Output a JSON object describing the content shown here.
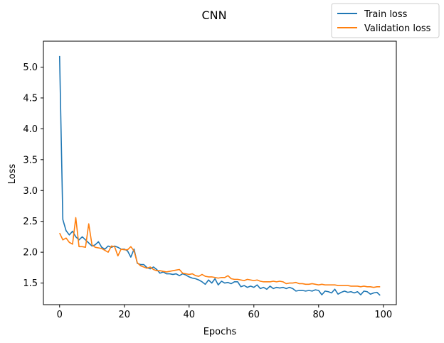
{
  "chart_data": {
    "type": "line",
    "title": "CNN",
    "xlabel": "Epochs",
    "ylabel": "Loss",
    "xlim": [
      -5,
      104
    ],
    "ylim": [
      1.15,
      5.42
    ],
    "xticks": [
      0,
      20,
      40,
      60,
      80,
      100
    ],
    "yticks": [
      1.5,
      2.0,
      2.5,
      3.0,
      3.5,
      4.0,
      4.5,
      5.0
    ],
    "xtick_labels": [
      "0",
      "20",
      "40",
      "60",
      "80",
      "100"
    ],
    "ytick_labels": [
      "1.5",
      "2.0",
      "2.5",
      "3.0",
      "3.5",
      "4.0",
      "4.5",
      "5.0"
    ],
    "grid": false,
    "legend_position": "upper-right",
    "x": [
      0,
      1,
      2,
      3,
      4,
      5,
      6,
      7,
      8,
      9,
      10,
      11,
      12,
      13,
      14,
      15,
      16,
      17,
      18,
      19,
      20,
      21,
      22,
      23,
      24,
      25,
      26,
      27,
      28,
      29,
      30,
      31,
      32,
      33,
      34,
      35,
      36,
      37,
      38,
      39,
      40,
      41,
      42,
      43,
      44,
      45,
      46,
      47,
      48,
      49,
      50,
      51,
      52,
      53,
      54,
      55,
      56,
      57,
      58,
      59,
      60,
      61,
      62,
      63,
      64,
      65,
      66,
      67,
      68,
      69,
      70,
      71,
      72,
      73,
      74,
      75,
      76,
      77,
      78,
      79,
      80,
      81,
      82,
      83,
      84,
      85,
      86,
      87,
      88,
      89,
      90,
      91,
      92,
      93,
      94,
      95,
      96,
      97,
      98,
      99
    ],
    "series": [
      {
        "name": "Train loss",
        "color": "#1f77b4",
        "values": [
          5.18,
          2.53,
          2.35,
          2.28,
          2.34,
          2.25,
          2.2,
          2.25,
          2.2,
          2.15,
          2.1,
          2.12,
          2.17,
          2.08,
          2.05,
          2.1,
          2.08,
          2.1,
          2.08,
          2.05,
          2.05,
          2.02,
          1.92,
          2.05,
          1.82,
          1.8,
          1.8,
          1.75,
          1.73,
          1.76,
          1.72,
          1.66,
          1.68,
          1.65,
          1.65,
          1.64,
          1.65,
          1.62,
          1.65,
          1.63,
          1.6,
          1.58,
          1.57,
          1.55,
          1.52,
          1.48,
          1.55,
          1.5,
          1.57,
          1.47,
          1.53,
          1.5,
          1.51,
          1.49,
          1.52,
          1.52,
          1.44,
          1.46,
          1.43,
          1.45,
          1.43,
          1.47,
          1.41,
          1.43,
          1.4,
          1.45,
          1.41,
          1.43,
          1.42,
          1.43,
          1.41,
          1.43,
          1.41,
          1.37,
          1.38,
          1.38,
          1.37,
          1.38,
          1.37,
          1.39,
          1.38,
          1.31,
          1.37,
          1.36,
          1.34,
          1.4,
          1.32,
          1.35,
          1.37,
          1.35,
          1.36,
          1.34,
          1.36,
          1.31,
          1.37,
          1.36,
          1.32,
          1.34,
          1.35,
          1.3
        ]
      },
      {
        "name": "Validation loss",
        "color": "#ff7f0e",
        "values": [
          2.31,
          2.2,
          2.23,
          2.16,
          2.13,
          2.56,
          2.09,
          2.09,
          2.08,
          2.46,
          2.12,
          2.08,
          2.07,
          2.06,
          2.03,
          2.0,
          2.1,
          2.09,
          1.94,
          2.05,
          2.04,
          2.04,
          2.09,
          2.02,
          1.83,
          1.78,
          1.76,
          1.74,
          1.76,
          1.72,
          1.7,
          1.7,
          1.69,
          1.68,
          1.69,
          1.7,
          1.71,
          1.72,
          1.66,
          1.65,
          1.64,
          1.65,
          1.62,
          1.61,
          1.64,
          1.61,
          1.6,
          1.6,
          1.59,
          1.58,
          1.59,
          1.59,
          1.62,
          1.57,
          1.56,
          1.56,
          1.55,
          1.54,
          1.56,
          1.55,
          1.54,
          1.55,
          1.53,
          1.52,
          1.52,
          1.52,
          1.53,
          1.52,
          1.53,
          1.52,
          1.49,
          1.5,
          1.5,
          1.51,
          1.49,
          1.49,
          1.48,
          1.48,
          1.49,
          1.48,
          1.47,
          1.48,
          1.47,
          1.47,
          1.47,
          1.47,
          1.46,
          1.46,
          1.46,
          1.46,
          1.45,
          1.45,
          1.45,
          1.44,
          1.45,
          1.44,
          1.44,
          1.43,
          1.44,
          1.44
        ]
      }
    ]
  }
}
